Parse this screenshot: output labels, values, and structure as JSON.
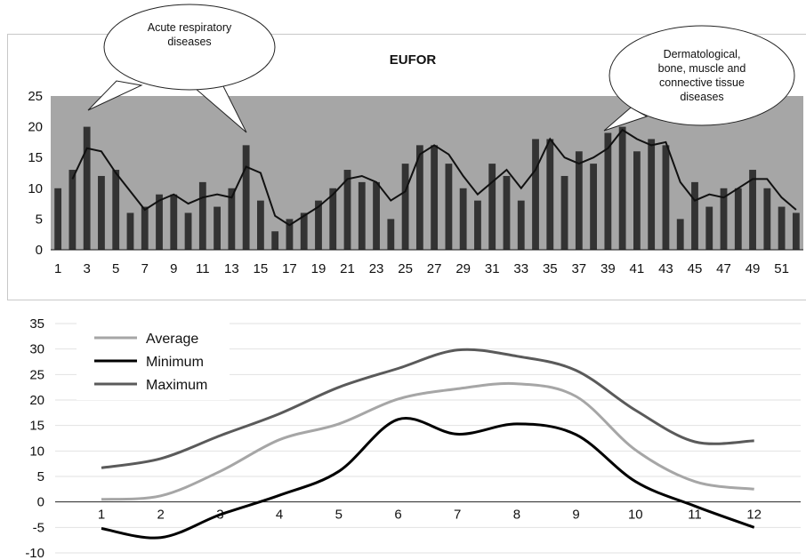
{
  "chart_data": [
    {
      "type": "bar",
      "title": "EUFOR",
      "xlabel": "",
      "ylabel": "",
      "ylim": [
        0,
        25
      ],
      "yticks": [
        0,
        5,
        10,
        15,
        20,
        25
      ],
      "xtick_labels": [
        "1",
        "3",
        "5",
        "7",
        "9",
        "11",
        "13",
        "15",
        "17",
        "19",
        "21",
        "23",
        "25",
        "27",
        "29",
        "31",
        "33",
        "35",
        "37",
        "39",
        "41",
        "43",
        "45",
        "47",
        "49",
        "51"
      ],
      "x": [
        1,
        2,
        3,
        4,
        5,
        6,
        7,
        8,
        9,
        10,
        11,
        12,
        13,
        14,
        15,
        16,
        17,
        18,
        19,
        20,
        21,
        22,
        23,
        24,
        25,
        26,
        27,
        28,
        29,
        30,
        31,
        32,
        33,
        34,
        35,
        36,
        37,
        38,
        39,
        40,
        41,
        42,
        43,
        44,
        45,
        46,
        47,
        48,
        49,
        50,
        51,
        52
      ],
      "values": [
        10,
        13,
        20,
        12,
        13,
        6,
        7,
        9,
        9,
        6,
        11,
        7,
        10,
        17,
        8,
        3,
        5,
        6,
        8,
        10,
        13,
        11,
        11,
        5,
        14,
        17,
        17,
        14,
        10,
        8,
        14,
        12,
        8,
        18,
        18,
        12,
        16,
        14,
        19,
        20,
        16,
        18,
        17,
        5,
        11,
        7,
        10,
        10,
        13,
        10,
        7,
        6
      ],
      "moving_average": [
        null,
        11.5,
        16.5,
        16,
        12.5,
        9.5,
        6.5,
        8,
        9,
        7.5,
        8.5,
        9,
        8.5,
        13.5,
        12.5,
        5.5,
        4,
        5.5,
        7,
        9,
        11.5,
        12,
        11,
        8,
        9.5,
        15.5,
        17,
        15.5,
        12,
        9,
        11,
        13,
        10,
        13,
        18,
        15,
        14,
        15,
        16.5,
        19.5,
        18,
        17,
        17.5,
        11,
        8,
        9,
        8.5,
        10,
        11.5,
        11.5,
        8.5,
        6.5
      ],
      "grid": false,
      "bar_color": "#333333",
      "plot_background": "#a6a6a6",
      "annotations": [
        {
          "lines": [
            "Acute respiratory",
            "diseases"
          ]
        },
        {
          "lines": [
            "Dermatological,",
            "bone, muscle and",
            "connective tissue",
            "diseases"
          ]
        }
      ]
    },
    {
      "type": "line",
      "title": "",
      "xlabel": "",
      "ylabel": "",
      "ylim": [
        -10,
        35
      ],
      "yticks": [
        -10,
        -5,
        0,
        5,
        10,
        15,
        20,
        25,
        30,
        35
      ],
      "x": [
        1,
        2,
        3,
        4,
        5,
        6,
        7,
        8,
        9,
        10,
        11,
        12
      ],
      "grid": true,
      "legend": "top-left",
      "series": [
        {
          "name": "Average",
          "color": "#a6a6a6",
          "values": [
            0.5,
            1.2,
            6,
            12.2,
            15.3,
            20.2,
            22.2,
            23.2,
            20.7,
            10.2,
            4,
            2.5
          ]
        },
        {
          "name": "Minimum",
          "color": "#000000",
          "values": [
            -5.2,
            -7,
            -2.5,
            1.3,
            6,
            16.2,
            13.3,
            15.3,
            13.2,
            4,
            -0.8,
            -5
          ]
        },
        {
          "name": "Maximum",
          "color": "#5a5a5a",
          "values": [
            6.7,
            8.5,
            13,
            17.3,
            22.5,
            26.2,
            29.8,
            28.6,
            25.8,
            18,
            11.8,
            12
          ]
        }
      ]
    }
  ]
}
